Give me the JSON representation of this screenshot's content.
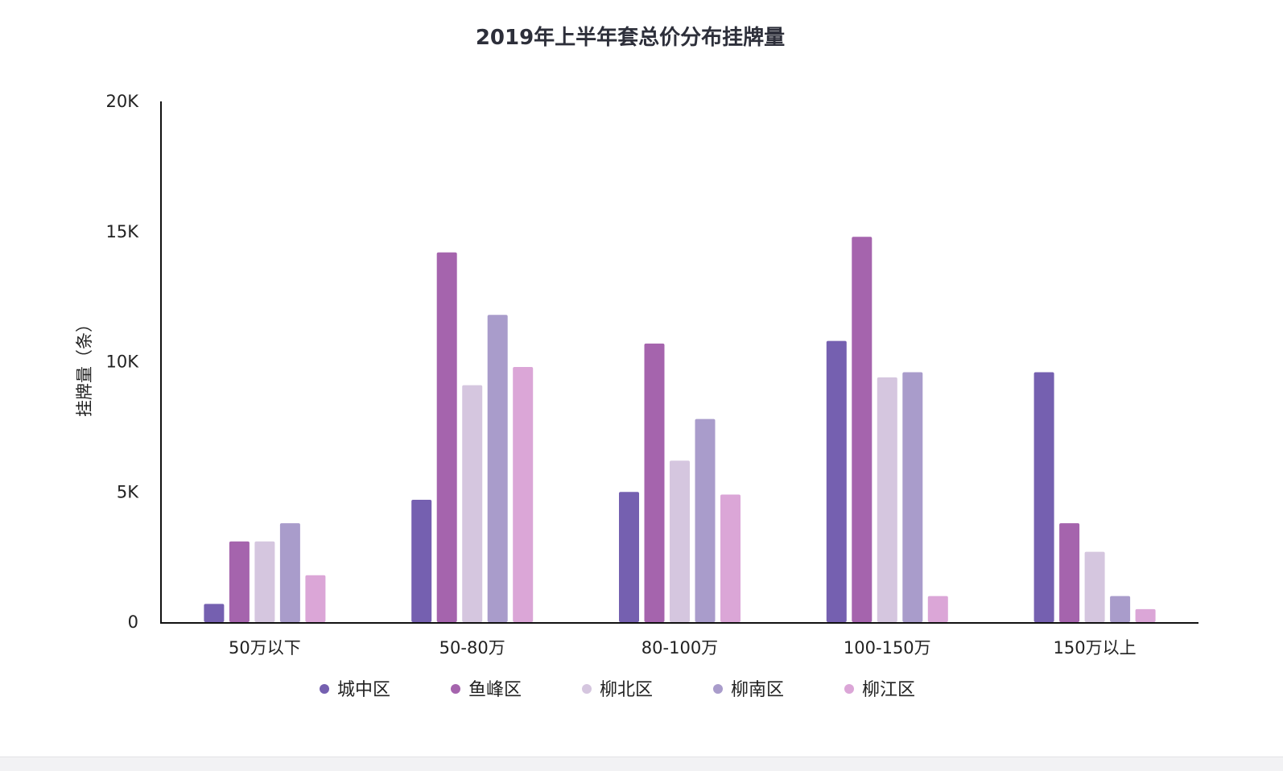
{
  "chart_data": {
    "type": "bar",
    "title": "2019年上半年套总价分布挂牌量",
    "ylabel": "挂牌量（条）",
    "xlabel": "",
    "ylim": [
      0,
      20000
    ],
    "yticks": [
      {
        "value": 0,
        "label": "0"
      },
      {
        "value": 5000,
        "label": "5K"
      },
      {
        "value": 10000,
        "label": "10K"
      },
      {
        "value": 15000,
        "label": "15K"
      },
      {
        "value": 20000,
        "label": "20K"
      }
    ],
    "categories": [
      "50万以下",
      "50-80万",
      "80-100万",
      "100-150万",
      "150万以上"
    ],
    "series": [
      {
        "name": "城中区",
        "color": "#7560b0",
        "values": [
          700,
          4700,
          5000,
          10800,
          9600
        ]
      },
      {
        "name": "鱼峰区",
        "color": "#a564ad",
        "values": [
          3100,
          14200,
          10700,
          14800,
          3800
        ]
      },
      {
        "name": "柳北区",
        "color": "#d5c6df",
        "values": [
          3100,
          9100,
          6200,
          9400,
          2700
        ]
      },
      {
        "name": "柳南区",
        "color": "#a99ccb",
        "values": [
          3800,
          11800,
          7800,
          9600,
          1000
        ]
      },
      {
        "name": "柳江区",
        "color": "#dba6d7",
        "values": [
          1800,
          9800,
          4900,
          1000,
          500
        ]
      }
    ],
    "legend_position": "bottom",
    "grid": false
  }
}
